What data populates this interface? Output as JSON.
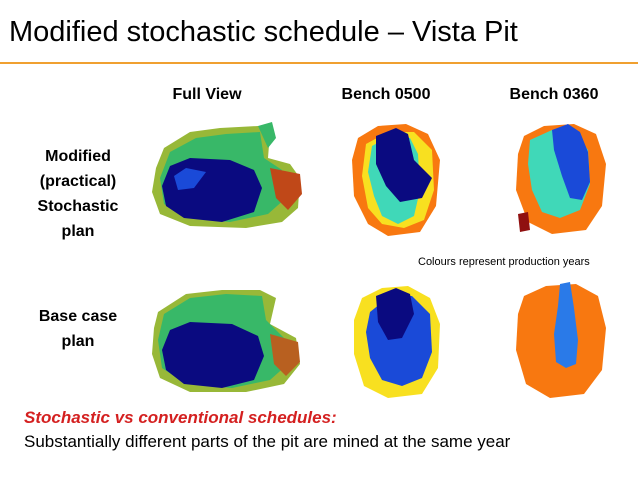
{
  "slide": {
    "title": "Modified stochastic schedule – Vista Pit",
    "accent_color": "#f0a030",
    "columns": [
      "Full View",
      "Bench 0500",
      "Bench 0360"
    ],
    "rows": [
      {
        "lines": [
          "Modified",
          "(practical)",
          "Stochastic",
          "plan"
        ]
      },
      {
        "lines": [
          "Base case",
          "plan"
        ]
      }
    ],
    "note": "Colours represent production years",
    "footer": {
      "emphasis": "Stochastic vs conventional schedules:",
      "emphasis_color": "#d42020",
      "body": "Substantially different parts of the pit are mined at the same year"
    },
    "palette": {
      "navy": "#0a0a80",
      "blue": "#1a4ad8",
      "sky": "#2a7ae8",
      "teal": "#40d8b8",
      "yellow": "#f8e020",
      "orange": "#f87810",
      "darkred": "#901010",
      "green": "#38b868",
      "olive": "#98b838"
    }
  }
}
